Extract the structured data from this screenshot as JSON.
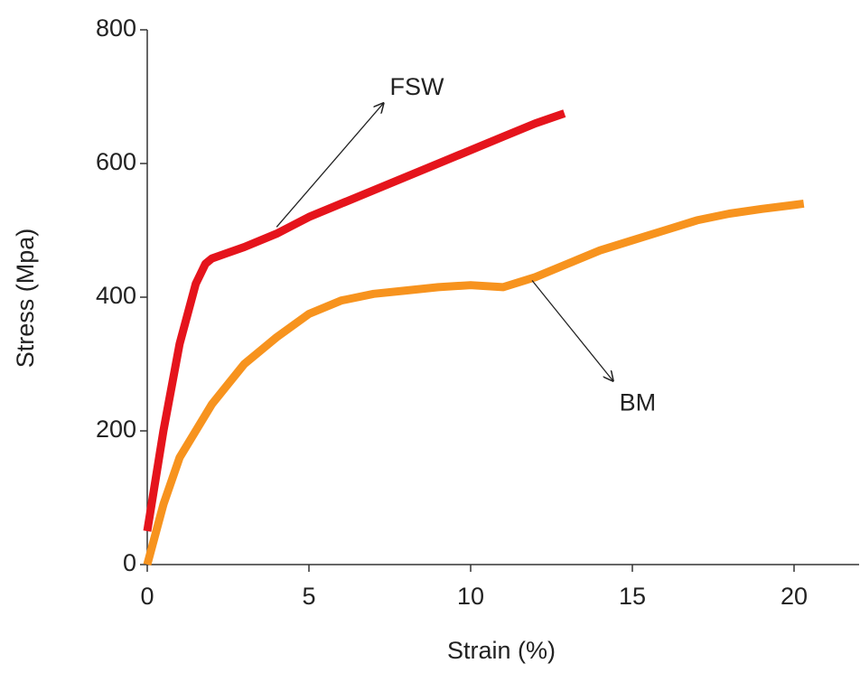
{
  "chart_data": {
    "type": "line",
    "x_label": "Strain (%)",
    "y_label": "Stress (Mpa)",
    "xlim": [
      0,
      22
    ],
    "xticks": [
      0,
      5,
      10,
      15,
      20
    ],
    "ylim": [
      0,
      800
    ],
    "yticks": [
      0,
      200,
      400,
      600,
      800
    ],
    "grid": false,
    "series": [
      {
        "name": "FSW",
        "color": "#e5141c",
        "x": [
          0,
          0.5,
          1,
          1.5,
          1.8,
          2,
          3,
          4,
          5,
          7,
          9,
          11,
          12,
          12.9
        ],
        "values": [
          50,
          200,
          330,
          420,
          450,
          458,
          475,
          495,
          520,
          560,
          600,
          640,
          660,
          675
        ]
      },
      {
        "name": "BM",
        "color": "#f7931e",
        "x": [
          0,
          0.5,
          1,
          2,
          3,
          4,
          5,
          6,
          7,
          8,
          9,
          10,
          11,
          12,
          13,
          14,
          15,
          16,
          17,
          18,
          19,
          20,
          20.3
        ],
        "values": [
          0,
          90,
          160,
          240,
          300,
          340,
          375,
          395,
          405,
          410,
          415,
          418,
          415,
          430,
          450,
          470,
          485,
          500,
          515,
          525,
          532,
          538,
          540
        ]
      }
    ]
  }
}
